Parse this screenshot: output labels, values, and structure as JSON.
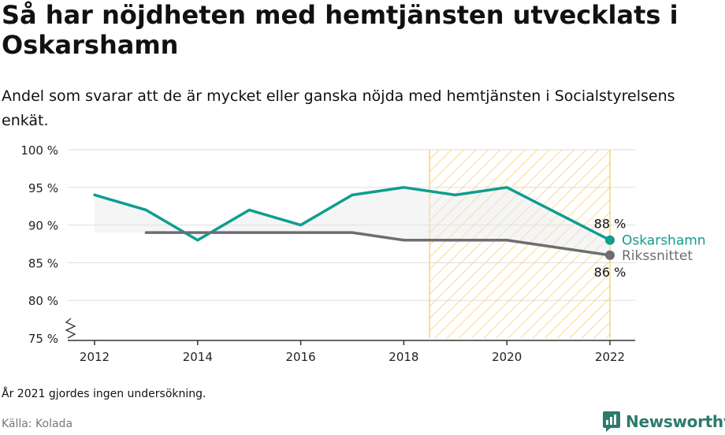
{
  "title": "Så har nöjdheten med hemtjänsten utvecklats i Oskarshamn",
  "subtitle": "Andel som svarar att de är mycket eller ganska nöjda med hemtjänsten i Socialstyrelsens enkät.",
  "footnote": "År 2021 gjordes ingen undersökning.",
  "source": "Källa: Kolada",
  "brand": "Newsworthy",
  "colors": {
    "oskarshamn": "#0e9e90",
    "riket": "#6d6e73",
    "hatch": "#f7c85a",
    "grid": "#dddddd"
  },
  "chart_data": {
    "type": "line",
    "title": "Så har nöjdheten med hemtjänsten utvecklats i Oskarshamn",
    "xlabel": "",
    "ylabel": "",
    "x_ticks": [
      "2012",
      "2014",
      "2016",
      "2018",
      "2020",
      "2022"
    ],
    "y_ticks": [
      "75 %",
      "80 %",
      "85 %",
      "90 %",
      "95 %",
      "100 %"
    ],
    "xlim": [
      2011.95,
      2022.5
    ],
    "ylim": [
      75,
      100
    ],
    "grid": true,
    "shaded_period": [
      2018.5,
      2022
    ],
    "series": [
      {
        "name": "Oskarshamn",
        "x": [
          2012,
          2013,
          2014,
          2015,
          2016,
          2017,
          2018,
          2019,
          2020,
          2022
        ],
        "y": [
          94,
          92,
          88,
          92,
          90,
          94,
          95,
          94,
          95,
          88
        ],
        "end_label": "88 %"
      },
      {
        "name": "Rikssnittet",
        "x": [
          2013,
          2014,
          2015,
          2016,
          2017,
          2018,
          2019,
          2020,
          2022
        ],
        "y": [
          89,
          89,
          89,
          89,
          89,
          88,
          88,
          88,
          86
        ],
        "end_label": "86 %"
      }
    ]
  }
}
